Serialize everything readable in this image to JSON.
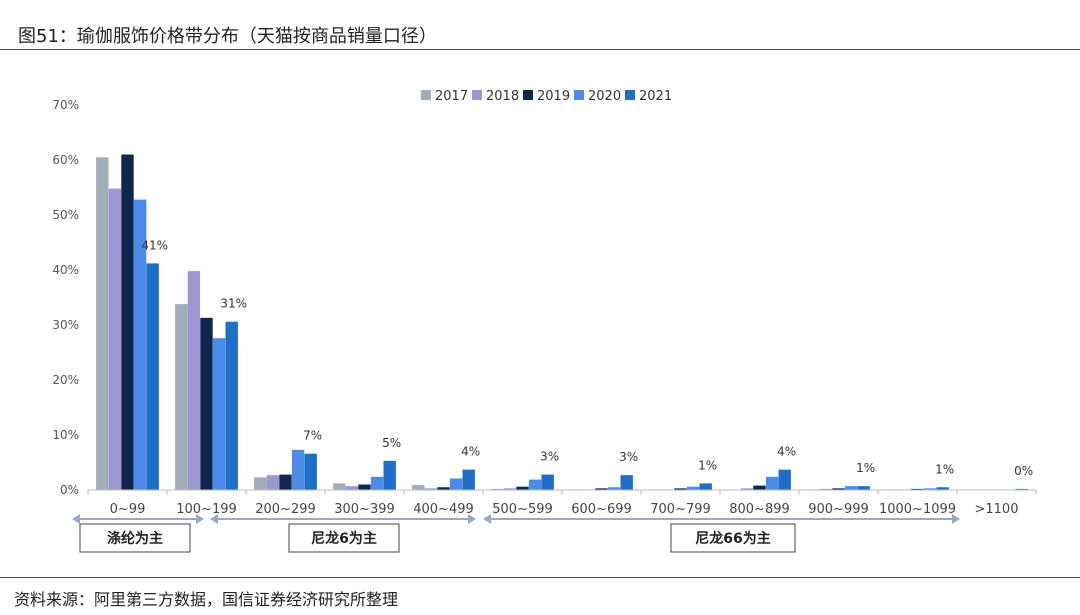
{
  "figure": {
    "title": "图51：瑜伽服饰价格带分布（天猫按商品销量口径）",
    "source": "资料来源：阿里第三方数据，国信证券经济研究所整理"
  },
  "chart_data": {
    "type": "bar",
    "title": "",
    "xlabel": "",
    "ylabel": "",
    "categories": [
      "0~99",
      "100~199",
      "200~299",
      "300~399",
      "400~499",
      "500~599",
      "600~699",
      "700~799",
      "800~899",
      "900~999",
      "1000~1099",
      ">1100"
    ],
    "ylim": [
      0,
      70
    ],
    "yticks": [
      "0%",
      "10%",
      "20%",
      "30%",
      "40%",
      "50%",
      "60%",
      "70%"
    ],
    "grid": false,
    "legend_position": "top",
    "series": [
      {
        "name": "2017",
        "color": "#a3acb9",
        "values": [
          60.5,
          33.8,
          2.3,
          1.2,
          0.9,
          0.2,
          0.1,
          0.1,
          0.1,
          0.1,
          0.1,
          0.0
        ]
      },
      {
        "name": "2018",
        "color": "#9d97d1",
        "values": [
          54.8,
          39.8,
          2.7,
          0.7,
          0.3,
          0.3,
          0.1,
          0.1,
          0.3,
          0.2,
          0.1,
          0.0
        ]
      },
      {
        "name": "2019",
        "color": "#0e2650",
        "values": [
          61.0,
          31.3,
          2.8,
          1.0,
          0.5,
          0.6,
          0.3,
          0.3,
          0.8,
          0.3,
          0.2,
          0.0
        ]
      },
      {
        "name": "2020",
        "color": "#4c8ce8",
        "values": [
          52.8,
          27.6,
          7.3,
          2.4,
          2.1,
          1.9,
          0.5,
          0.6,
          2.4,
          0.7,
          0.3,
          0.0
        ]
      },
      {
        "name": "2021",
        "color": "#1f6fc9",
        "values": [
          41.2,
          30.6,
          6.6,
          5.3,
          3.7,
          2.8,
          2.7,
          1.2,
          3.7,
          0.7,
          0.5,
          0.2
        ]
      }
    ],
    "data_labels": [
      "41%",
      "31%",
      "7%",
      "5%",
      "4%",
      "3%",
      "3%",
      "1%",
      "4%",
      "1%",
      "1%",
      "0%"
    ],
    "bands": [
      {
        "label": "涤纶为主",
        "from": 0,
        "to": 0
      },
      {
        "label": "尼龙6为主",
        "from": 1,
        "to": 4
      },
      {
        "label": "尼龙66为主",
        "from": 5,
        "to": 11
      }
    ]
  }
}
